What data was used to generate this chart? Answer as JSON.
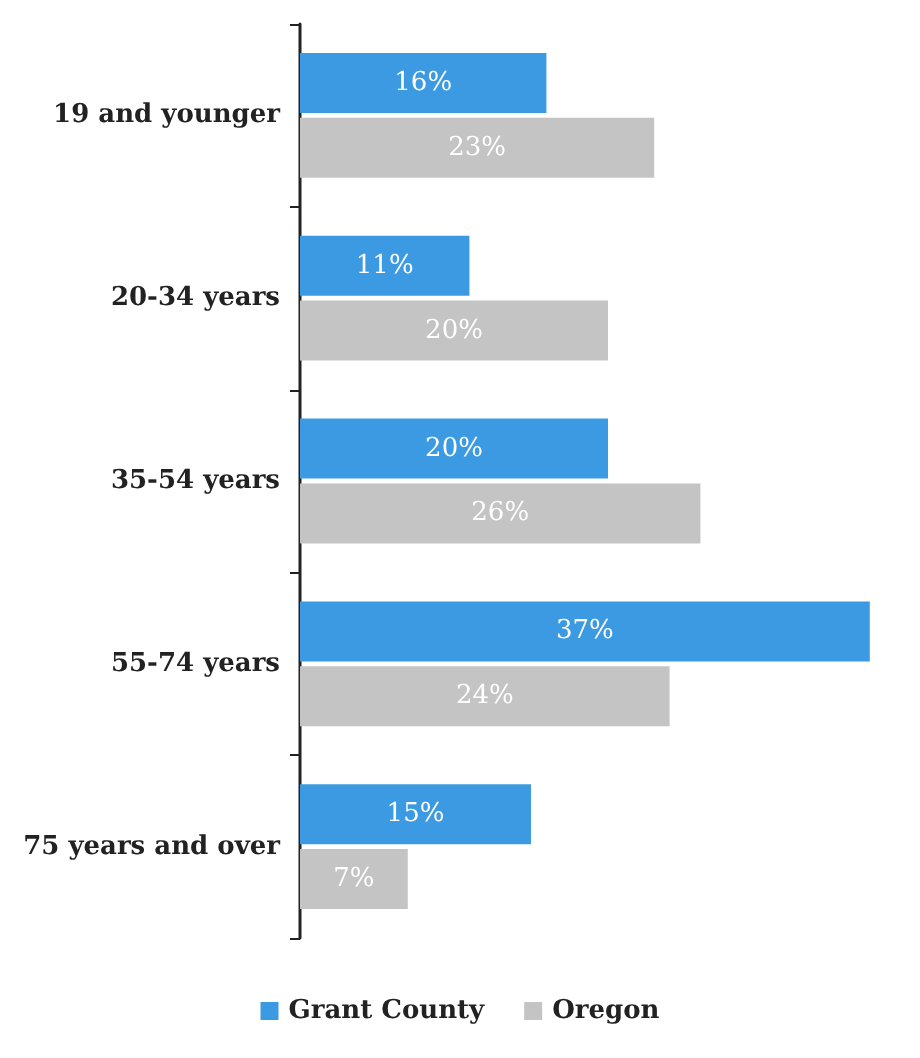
{
  "chart_data": {
    "type": "bar",
    "orientation": "horizontal",
    "categories": [
      "19 and younger",
      "20-34 years",
      "35-54 years",
      "55-74 years",
      "75 years and over"
    ],
    "series": [
      {
        "name": "Grant County",
        "color": "#3b9ae1",
        "values": [
          16,
          11,
          20,
          37,
          15
        ],
        "value_labels": [
          "16%",
          "11%",
          "20%",
          "37%",
          "15%"
        ]
      },
      {
        "name": "Oregon",
        "color": "#c4c4c4",
        "values": [
          23,
          20,
          26,
          24,
          7
        ],
        "value_labels": [
          "23%",
          "20%",
          "26%",
          "24%",
          "7%"
        ]
      }
    ],
    "legend": "bottom"
  }
}
